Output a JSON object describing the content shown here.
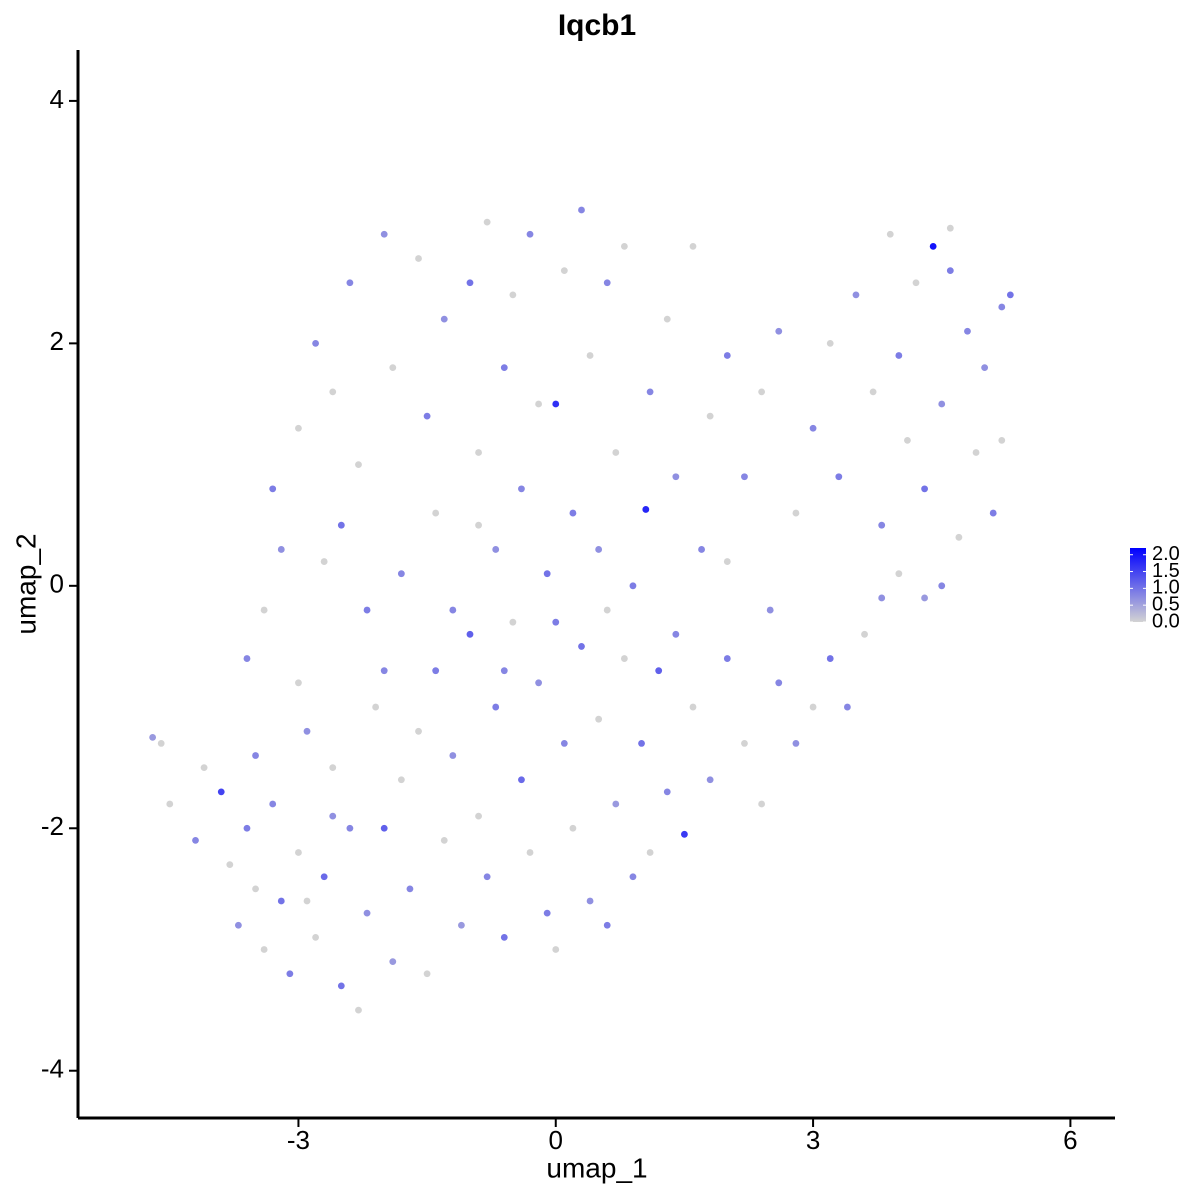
{
  "chart_data": {
    "type": "scatter",
    "title": "Iqcb1",
    "x_label": "umap_1",
    "y_label": "umap_2",
    "xlim": [
      -5.57,
      6.52
    ],
    "ylim": [
      -4.39,
      4.42
    ],
    "xticks": [
      -3,
      0,
      3,
      6
    ],
    "yticks": [
      -4,
      -2,
      0,
      2,
      4
    ],
    "color_low": "#d3d3d3",
    "color_high": "#0000ff",
    "clim": [
      0,
      2.2
    ],
    "colorbar_ticks": [
      {
        "value": 0,
        "label": "0.0"
      },
      {
        "value": 0.5,
        "label": "0.5"
      },
      {
        "value": 1,
        "label": "1.0"
      },
      {
        "value": 1.5,
        "label": "1.5"
      },
      {
        "value": 2,
        "label": "2.0"
      }
    ],
    "legend_position": "right",
    "x": [
      -4.7,
      -4.6,
      -4.5,
      -4.2,
      -4.1,
      -3.9,
      -3.8,
      -3.7,
      -3.6,
      -3.5,
      -3.4,
      -3.3,
      -3.2,
      -3.1,
      -3.0,
      -2.9,
      -2.8,
      -2.7,
      -2.6,
      -2.5,
      -2.4,
      -2.3,
      -2.2,
      -2.1,
      -2.0,
      -1.9,
      -1.8,
      -1.7,
      -1.5,
      -1.4,
      -1.3,
      -1.2,
      -1.1,
      -1.0,
      -0.9,
      -0.8,
      -0.7,
      -0.6,
      -0.5,
      -0.4,
      -0.3,
      -0.2,
      -0.1,
      0.0,
      0.1,
      0.2,
      0.3,
      0.4,
      0.5,
      0.6,
      0.7,
      0.8,
      0.9,
      1.0,
      1.1,
      1.2,
      1.3,
      1.5,
      1.6,
      1.8,
      2.0,
      2.2,
      2.4,
      2.6,
      2.8,
      3.0,
      3.2,
      3.4,
      3.6,
      3.8,
      4.0,
      4.3,
      -3.6,
      -3.4,
      -3.2,
      -3.3,
      -3.0,
      -2.8,
      -2.6,
      -2.5,
      -2.4,
      -2.3,
      -2.2,
      -2.0,
      -1.9,
      -1.8,
      -1.6,
      -1.5,
      -1.4,
      -1.3,
      -1.2,
      -1.0,
      -0.9,
      -0.8,
      -0.7,
      -0.6,
      -0.5,
      -0.4,
      -0.3,
      -0.2,
      -0.1,
      0.0,
      0.1,
      0.2,
      0.3,
      0.4,
      0.5,
      0.6,
      0.7,
      0.8,
      0.9,
      1.05,
      1.1,
      1.3,
      1.4,
      1.6,
      1.7,
      1.8,
      2.0,
      2.2,
      2.4,
      2.6,
      2.8,
      3.0,
      3.2,
      3.3,
      3.5,
      3.7,
      3.8,
      4.0,
      4.1,
      4.2,
      4.3,
      4.4,
      4.5,
      4.6,
      4.7,
      4.8,
      4.9,
      5.0,
      5.1,
      5.2,
      5.3,
      5.2,
      4.5,
      3.9,
      4.6,
      -2.7,
      -2.0,
      -1.6,
      -0.6,
      0.0,
      0.6,
      1.4,
      2.0,
      2.5,
      -3.0,
      -2.6,
      -3.5,
      -2.9,
      -0.9
    ],
    "y": [
      -1.25,
      -1.3,
      -1.8,
      -2.1,
      -1.5,
      -1.7,
      -2.3,
      -2.8,
      -2.0,
      -2.5,
      -3.0,
      -1.8,
      -2.6,
      -3.2,
      -2.2,
      -1.2,
      -2.9,
      -2.4,
      -1.5,
      -3.3,
      -2.0,
      -3.5,
      -2.7,
      -1.0,
      -2.0,
      -3.1,
      -1.6,
      -2.5,
      -3.2,
      -0.7,
      -2.1,
      -1.4,
      -2.8,
      -0.4,
      -1.9,
      -2.4,
      -1.0,
      -2.9,
      -0.3,
      -1.6,
      -2.2,
      -0.8,
      -2.7,
      -3.0,
      -1.3,
      -2.0,
      -0.5,
      -2.6,
      -1.1,
      -2.8,
      -1.8,
      -0.6,
      -2.4,
      -1.3,
      -2.2,
      -0.7,
      -1.7,
      -2.05,
      -1.0,
      -1.6,
      -0.6,
      -1.3,
      -1.8,
      -0.8,
      -1.3,
      -1.0,
      -0.6,
      -1.0,
      -0.4,
      -0.1,
      0.1,
      -0.1,
      -0.6,
      -0.2,
      0.3,
      0.8,
      1.3,
      2.0,
      1.6,
      0.5,
      2.5,
      1.0,
      -0.2,
      2.9,
      1.8,
      0.1,
      2.7,
      1.4,
      0.6,
      2.2,
      -0.2,
      2.5,
      1.1,
      3.0,
      0.3,
      1.8,
      2.4,
      0.8,
      2.9,
      1.5,
      0.1,
      1.5,
      2.6,
      0.6,
      3.1,
      1.9,
      0.3,
      2.5,
      1.1,
      2.8,
      0.0,
      0.63,
      1.6,
      2.2,
      0.9,
      2.8,
      0.3,
      1.4,
      1.9,
      0.9,
      1.6,
      2.1,
      0.6,
      1.3,
      2.0,
      0.9,
      2.4,
      1.6,
      0.5,
      1.9,
      1.2,
      2.5,
      0.8,
      2.8,
      1.5,
      2.6,
      0.4,
      2.1,
      1.1,
      1.8,
      0.6,
      2.3,
      2.4,
      1.2,
      0.0,
      2.9,
      2.95,
      0.2,
      -0.7,
      -1.2,
      -0.7,
      -0.3,
      -0.2,
      -0.4,
      0.2,
      -0.2,
      -0.8,
      -1.9,
      -1.4,
      -2.6,
      0.5
    ],
    "values": [
      0.6,
      0,
      0,
      0.8,
      0,
      1.5,
      0,
      0.7,
      0.9,
      0,
      0,
      0.8,
      1.0,
      0.9,
      0,
      0.7,
      0,
      1.1,
      0,
      1.0,
      0.8,
      0,
      0.7,
      0,
      1.2,
      0.6,
      0,
      0.8,
      0,
      0.9,
      0,
      0.7,
      0.6,
      1.2,
      0,
      0.8,
      0.9,
      1.0,
      0,
      1.1,
      0,
      0.7,
      0.9,
      0,
      0.8,
      0,
      1.0,
      0.7,
      0,
      0.9,
      0.6,
      0,
      0.8,
      1.0,
      0,
      1.2,
      0.8,
      1.6,
      0,
      0.7,
      0.9,
      0,
      0,
      0.8,
      0.7,
      0,
      1.0,
      0.8,
      0,
      0.7,
      0,
      0.6,
      0.8,
      0,
      0.7,
      0.9,
      0,
      0.8,
      0,
      1.0,
      0.8,
      0,
      0.9,
      0.7,
      0,
      0.8,
      0,
      0.9,
      0,
      0.7,
      0.8,
      1.0,
      0,
      0,
      0.7,
      0.9,
      0,
      0.8,
      0.8,
      0,
      1.0,
      1.7,
      0,
      0.9,
      0.8,
      0,
      0.7,
      0.8,
      0,
      0,
      0.9,
      1.8,
      0.8,
      0,
      0.7,
      0,
      0.8,
      0,
      0.9,
      0.8,
      0,
      0.7,
      0,
      0.8,
      0,
      0.9,
      0.7,
      0,
      0.8,
      0.9,
      0,
      0,
      1.0,
      2.0,
      0.7,
      0.9,
      0,
      0.8,
      0,
      0.7,
      0.9,
      0.8,
      1.0,
      0,
      0.8,
      0,
      0,
      0,
      0.8,
      0,
      0.8,
      0.9,
      0,
      0.8,
      0,
      0.7,
      0,
      0.7,
      0.8,
      0,
      0
    ]
  }
}
